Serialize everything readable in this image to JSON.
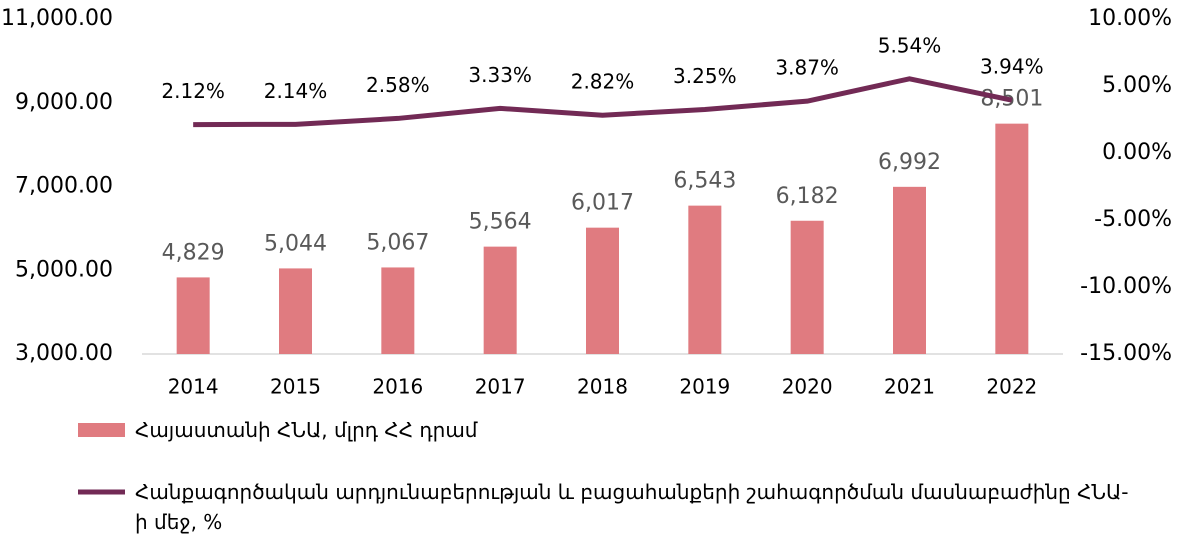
{
  "chart_data": {
    "type": "bar",
    "categories": [
      "2014",
      "2015",
      "2016",
      "2017",
      "2018",
      "2019",
      "2020",
      "2021",
      "2022"
    ],
    "series": [
      {
        "name": "Հայաստանի ՀՆԱ, մլրդ ՀՀ դրամ",
        "type": "bar",
        "color": "#e07b80",
        "values": [
          4829,
          5044,
          5067,
          5564,
          6017,
          6543,
          6182,
          6992,
          8501
        ],
        "value_labels": [
          "4,829",
          "5,044",
          "5,067",
          "5,564",
          "6,017",
          "6,543",
          "6,182",
          "6,992",
          "8,501"
        ]
      },
      {
        "name": "Հանքագործական արդյունաբերության և բացահանքերի շահագործման մասնաբաժինը ՀՆԱ-ի մեջ, %",
        "type": "line",
        "axis": "y2",
        "color": "#722a55",
        "values": [
          2.12,
          2.14,
          2.58,
          3.33,
          2.82,
          3.25,
          3.87,
          5.54,
          3.94
        ],
        "value_labels": [
          "2.12%",
          "2.14%",
          "2.58%",
          "3.33%",
          "2.82%",
          "3.25%",
          "3.87%",
          "5.54%",
          "3.94%"
        ]
      }
    ],
    "ylim": [
      3000,
      11000
    ],
    "yticks": [
      {
        "value": 3000,
        "label": "3,000.00"
      },
      {
        "value": 5000,
        "label": "5,000.00"
      },
      {
        "value": 7000,
        "label": "7,000.00"
      },
      {
        "value": 9000,
        "label": "9,000.00"
      },
      {
        "value": 11000,
        "label": "11,000.00"
      }
    ],
    "y2lim": [
      -15,
      10
    ],
    "y2ticks": [
      {
        "value": -15,
        "label": "-15.00%"
      },
      {
        "value": -10,
        "label": "-10.00%"
      },
      {
        "value": -5,
        "label": "-5.00%"
      },
      {
        "value": 0,
        "label": "0.00%"
      },
      {
        "value": 5,
        "label": "5.00%"
      },
      {
        "value": 10,
        "label": "10.00%"
      }
    ],
    "grid": false,
    "legend": "bottom"
  }
}
